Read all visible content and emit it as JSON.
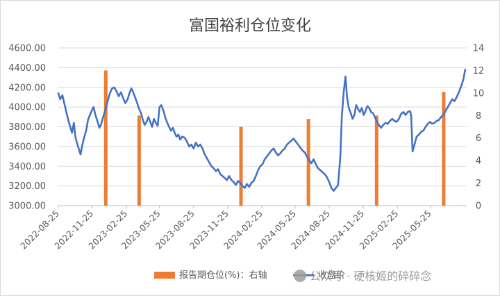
{
  "chart_data": {
    "type": "bar+line",
    "title": "富国裕利仓位变化",
    "x_tick_labels": [
      "2022-08-25",
      "2022-11-25",
      "2023-02-25",
      "2023-05-25",
      "2023-08-25",
      "2023-11-25",
      "2024-02-25",
      "2024-05-25",
      "2024-08-25",
      "2024-11-25",
      "2025-02-25",
      "2025-05-25"
    ],
    "x_range": [
      "2022-08-25",
      "2025-08-31"
    ],
    "y_left": {
      "ticks": [
        "3000.00",
        "3200.00",
        "3400.00",
        "3600.00",
        "3800.00",
        "4000.00",
        "4200.00",
        "4400.00",
        "4600.00"
      ],
      "min": 3000,
      "max": 4600
    },
    "y_right": {
      "ticks": [
        "0",
        "2",
        "4",
        "6",
        "8",
        "10",
        "12",
        "14"
      ],
      "min": 0,
      "max": 14
    },
    "grid": true,
    "legend_position": "bottom",
    "legend": {
      "bar_label": "报告期仓位(%)：右轴",
      "line_label": "收盘价"
    },
    "bar_color": "#ED7D31",
    "line_color": "#4472C4",
    "bars": [
      {
        "date": "2022-12-31",
        "value": 12.0
      },
      {
        "date": "2023-03-31",
        "value": 8.0
      },
      {
        "date": "2023-12-31",
        "value": 7.0
      },
      {
        "date": "2024-06-30",
        "value": 7.7
      },
      {
        "date": "2024-12-31",
        "value": 8.0
      },
      {
        "date": "2025-06-30",
        "value": 10.1
      }
    ],
    "line": [
      [
        "2022-08-25",
        4140
      ],
      [
        "2022-08-30",
        4080
      ],
      [
        "2022-09-05",
        4120
      ],
      [
        "2022-09-10",
        4040
      ],
      [
        "2022-09-15",
        3960
      ],
      [
        "2022-09-20",
        3880
      ],
      [
        "2022-09-26",
        3800
      ],
      [
        "2022-10-01",
        3740
      ],
      [
        "2022-10-06",
        3840
      ],
      [
        "2022-10-10",
        3700
      ],
      [
        "2022-10-14",
        3640
      ],
      [
        "2022-10-19",
        3580
      ],
      [
        "2022-10-24",
        3520
      ],
      [
        "2022-10-29",
        3620
      ],
      [
        "2022-11-03",
        3700
      ],
      [
        "2022-11-08",
        3760
      ],
      [
        "2022-11-13",
        3870
      ],
      [
        "2022-11-18",
        3920
      ],
      [
        "2022-11-23",
        3960
      ],
      [
        "2022-11-28",
        4000
      ],
      [
        "2022-12-03",
        3920
      ],
      [
        "2022-12-09",
        3850
      ],
      [
        "2022-12-14",
        3790
      ],
      [
        "2022-12-19",
        3830
      ],
      [
        "2022-12-24",
        3900
      ],
      [
        "2022-12-29",
        3960
      ],
      [
        "2023-01-05",
        4060
      ],
      [
        "2023-01-11",
        4140
      ],
      [
        "2023-01-17",
        4190
      ],
      [
        "2023-01-23",
        4200
      ],
      [
        "2023-01-29",
        4160
      ],
      [
        "2023-02-04",
        4110
      ],
      [
        "2023-02-10",
        4150
      ],
      [
        "2023-02-16",
        4090
      ],
      [
        "2023-02-22",
        4040
      ],
      [
        "2023-02-28",
        4080
      ],
      [
        "2023-03-05",
        4140
      ],
      [
        "2023-03-10",
        4190
      ],
      [
        "2023-03-15",
        4150
      ],
      [
        "2023-03-20",
        4100
      ],
      [
        "2023-03-25",
        4050
      ],
      [
        "2023-03-30",
        3990
      ],
      [
        "2023-04-05",
        3940
      ],
      [
        "2023-04-10",
        3870
      ],
      [
        "2023-04-15",
        3820
      ],
      [
        "2023-04-20",
        3850
      ],
      [
        "2023-04-25",
        3900
      ],
      [
        "2023-04-30",
        3850
      ],
      [
        "2023-05-05",
        3800
      ],
      [
        "2023-05-10",
        3880
      ],
      [
        "2023-05-15",
        3840
      ],
      [
        "2023-05-20",
        3810
      ],
      [
        "2023-05-25",
        4000
      ],
      [
        "2023-05-30",
        4020
      ],
      [
        "2023-06-05",
        3960
      ],
      [
        "2023-06-10",
        3890
      ],
      [
        "2023-06-15",
        3840
      ],
      [
        "2023-06-20",
        3800
      ],
      [
        "2023-06-25",
        3760
      ],
      [
        "2023-06-30",
        3790
      ],
      [
        "2023-07-05",
        3740
      ],
      [
        "2023-07-10",
        3700
      ],
      [
        "2023-07-15",
        3720
      ],
      [
        "2023-07-20",
        3670
      ],
      [
        "2023-07-25",
        3700
      ],
      [
        "2023-08-01",
        3690
      ],
      [
        "2023-08-07",
        3650
      ],
      [
        "2023-08-13",
        3600
      ],
      [
        "2023-08-19",
        3620
      ],
      [
        "2023-08-25",
        3580
      ],
      [
        "2023-08-31",
        3640
      ],
      [
        "2023-09-06",
        3600
      ],
      [
        "2023-09-12",
        3620
      ],
      [
        "2023-09-18",
        3580
      ],
      [
        "2023-09-24",
        3520
      ],
      [
        "2023-09-30",
        3480
      ],
      [
        "2023-10-06",
        3440
      ],
      [
        "2023-10-12",
        3400
      ],
      [
        "2023-10-18",
        3380
      ],
      [
        "2023-10-24",
        3350
      ],
      [
        "2023-10-30",
        3370
      ],
      [
        "2023-11-05",
        3320
      ],
      [
        "2023-11-11",
        3300
      ],
      [
        "2023-11-17",
        3280
      ],
      [
        "2023-11-23",
        3260
      ],
      [
        "2023-11-29",
        3300
      ],
      [
        "2023-12-05",
        3260
      ],
      [
        "2023-12-11",
        3240
      ],
      [
        "2023-12-17",
        3210
      ],
      [
        "2023-12-23",
        3250
      ],
      [
        "2023-12-29",
        3230
      ],
      [
        "2024-01-04",
        3200
      ],
      [
        "2024-01-10",
        3180
      ],
      [
        "2024-01-16",
        3220
      ],
      [
        "2024-01-22",
        3190
      ],
      [
        "2024-01-28",
        3230
      ],
      [
        "2024-02-03",
        3250
      ],
      [
        "2024-02-09",
        3300
      ],
      [
        "2024-02-15",
        3360
      ],
      [
        "2024-02-21",
        3400
      ],
      [
        "2024-02-27",
        3420
      ],
      [
        "2024-03-04",
        3470
      ],
      [
        "2024-03-10",
        3500
      ],
      [
        "2024-03-16",
        3530
      ],
      [
        "2024-03-22",
        3560
      ],
      [
        "2024-03-28",
        3580
      ],
      [
        "2024-04-03",
        3540
      ],
      [
        "2024-04-09",
        3510
      ],
      [
        "2024-04-15",
        3530
      ],
      [
        "2024-04-21",
        3560
      ],
      [
        "2024-04-27",
        3580
      ],
      [
        "2024-05-03",
        3620
      ],
      [
        "2024-05-09",
        3640
      ],
      [
        "2024-05-15",
        3660
      ],
      [
        "2024-05-21",
        3680
      ],
      [
        "2024-05-27",
        3650
      ],
      [
        "2024-06-02",
        3620
      ],
      [
        "2024-06-08",
        3590
      ],
      [
        "2024-06-14",
        3560
      ],
      [
        "2024-06-20",
        3540
      ],
      [
        "2024-06-26",
        3500
      ],
      [
        "2024-07-02",
        3460
      ],
      [
        "2024-07-08",
        3430
      ],
      [
        "2024-07-14",
        3470
      ],
      [
        "2024-07-20",
        3420
      ],
      [
        "2024-07-26",
        3380
      ],
      [
        "2024-08-01",
        3360
      ],
      [
        "2024-08-07",
        3340
      ],
      [
        "2024-08-13",
        3320
      ],
      [
        "2024-08-19",
        3290
      ],
      [
        "2024-08-25",
        3240
      ],
      [
        "2024-08-31",
        3180
      ],
      [
        "2024-09-06",
        3150
      ],
      [
        "2024-09-12",
        3180
      ],
      [
        "2024-09-18",
        3210
      ],
      [
        "2024-09-24",
        3500
      ],
      [
        "2024-09-28",
        3900
      ],
      [
        "2024-10-03",
        4150
      ],
      [
        "2024-10-08",
        4310
      ],
      [
        "2024-10-12",
        4100
      ],
      [
        "2024-10-17",
        3990
      ],
      [
        "2024-10-22",
        3940
      ],
      [
        "2024-10-27",
        3880
      ],
      [
        "2024-11-01",
        3920
      ],
      [
        "2024-11-06",
        4020
      ],
      [
        "2024-11-11",
        3980
      ],
      [
        "2024-11-16",
        3950
      ],
      [
        "2024-11-21",
        3990
      ],
      [
        "2024-11-26",
        3920
      ],
      [
        "2024-12-01",
        3960
      ],
      [
        "2024-12-06",
        4010
      ],
      [
        "2024-12-11",
        3990
      ],
      [
        "2024-12-16",
        3950
      ],
      [
        "2024-12-21",
        3940
      ],
      [
        "2024-12-26",
        3900
      ],
      [
        "2024-12-31",
        3860
      ],
      [
        "2025-01-06",
        3820
      ],
      [
        "2025-01-12",
        3790
      ],
      [
        "2025-01-18",
        3820
      ],
      [
        "2025-01-24",
        3840
      ],
      [
        "2025-01-30",
        3830
      ],
      [
        "2025-02-05",
        3860
      ],
      [
        "2025-02-11",
        3880
      ],
      [
        "2025-02-17",
        3860
      ],
      [
        "2025-02-23",
        3850
      ],
      [
        "2025-03-01",
        3880
      ],
      [
        "2025-03-07",
        3930
      ],
      [
        "2025-03-13",
        3950
      ],
      [
        "2025-03-19",
        3920
      ],
      [
        "2025-03-25",
        3950
      ],
      [
        "2025-03-31",
        3960
      ],
      [
        "2025-04-03",
        3920
      ],
      [
        "2025-04-07",
        3550
      ],
      [
        "2025-04-12",
        3620
      ],
      [
        "2025-04-18",
        3700
      ],
      [
        "2025-04-24",
        3720
      ],
      [
        "2025-04-30",
        3750
      ],
      [
        "2025-05-06",
        3760
      ],
      [
        "2025-05-12",
        3800
      ],
      [
        "2025-05-18",
        3830
      ],
      [
        "2025-05-24",
        3850
      ],
      [
        "2025-05-30",
        3830
      ],
      [
        "2025-06-05",
        3840
      ],
      [
        "2025-06-11",
        3860
      ],
      [
        "2025-06-17",
        3870
      ],
      [
        "2025-06-23",
        3900
      ],
      [
        "2025-06-29",
        3920
      ],
      [
        "2025-07-05",
        3960
      ],
      [
        "2025-07-11",
        4000
      ],
      [
        "2025-07-17",
        4040
      ],
      [
        "2025-07-23",
        4080
      ],
      [
        "2025-07-29",
        4060
      ],
      [
        "2025-08-04",
        4100
      ],
      [
        "2025-08-10",
        4150
      ],
      [
        "2025-08-16",
        4210
      ],
      [
        "2025-08-22",
        4280
      ],
      [
        "2025-08-27",
        4380
      ]
    ]
  },
  "watermark": {
    "text": "公众号 · 硬核姬的碎碎念"
  }
}
